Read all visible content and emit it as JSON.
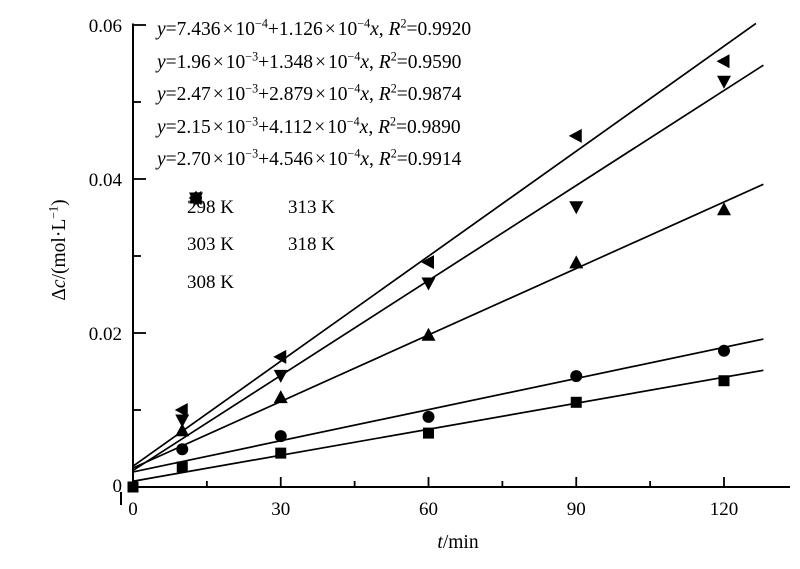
{
  "chart_data": {
    "type": "scatter",
    "title": "",
    "xlabel": {
      "display": "t/min",
      "var": "t",
      "rest": "/min"
    },
    "ylabel": {
      "display": "Δc/(mol·L⁻¹)",
      "sym": "Δ",
      "var": "c",
      "mid": "/(mol·L",
      "exp": "−1",
      "end": ")"
    },
    "x_axis": {
      "range": [
        0,
        133
      ],
      "ticks_major": [
        0,
        30,
        60,
        90,
        120
      ],
      "tick_labels": [
        "0",
        "30",
        "60",
        "90",
        "120"
      ],
      "ticks_minor": [
        15,
        45,
        75,
        105
      ]
    },
    "y_axis": {
      "range": [
        0,
        0.0602
      ],
      "ticks_major": [
        0,
        0.02,
        0.04,
        0.06
      ],
      "tick_labels": [
        "0",
        "0.02",
        "0.04",
        "0.06"
      ],
      "ticks_minor": [
        0.01,
        0.03,
        0.05
      ]
    },
    "grid": false,
    "colors": {
      "foreground": "#000000",
      "background": "#ffffff"
    },
    "fit_line_x_end": 128,
    "series": [
      {
        "name": "298 K",
        "key": "298k",
        "marker": "square",
        "points": [
          [
            0,
            0
          ],
          [
            10,
            0.0026
          ],
          [
            30,
            0.0044
          ],
          [
            60,
            0.007
          ],
          [
            90,
            0.011
          ],
          [
            120,
            0.0138
          ]
        ],
        "fit": {
          "intercept": 0.0007436,
          "slope": 0.0001126
        },
        "equation": {
          "c0": "7.436",
          "e0": "−4",
          "c1": "1.126",
          "e1": "−4",
          "r2": "0.9920",
          "display": "y=7.436×10⁻⁴+1.126×10⁻⁴x, R²=0.9920"
        }
      },
      {
        "name": "303 K",
        "key": "303k",
        "marker": "circle",
        "points": [
          [
            10,
            0.0049
          ],
          [
            30,
            0.0066
          ],
          [
            60,
            0.0091
          ],
          [
            90,
            0.0144
          ],
          [
            120,
            0.0177
          ]
        ],
        "fit": {
          "intercept": 0.00196,
          "slope": 0.0001348
        },
        "equation": {
          "c0": "1.96",
          "e0": "−3",
          "c1": "1.348",
          "e1": "−4",
          "r2": "0.9590",
          "display": "y=1.96×10⁻³+1.348×10⁻⁴x, R²=0.9590"
        }
      },
      {
        "name": "308 K",
        "key": "308k",
        "marker": "triangle-up",
        "points": [
          [
            10,
            0.0073
          ],
          [
            30,
            0.0116
          ],
          [
            60,
            0.0197
          ],
          [
            90,
            0.0291
          ],
          [
            120,
            0.036
          ]
        ],
        "fit": {
          "intercept": 0.00247,
          "slope": 0.0002879
        },
        "equation": {
          "c0": "2.47",
          "e0": "−3",
          "c1": "2.879",
          "e1": "−4",
          "r2": "0.9874",
          "display": "y=2.47×10⁻³+2.879×10⁻⁴x, R²=0.9874"
        }
      },
      {
        "name": "313 K",
        "key": "313k",
        "marker": "triangle-down",
        "points": [
          [
            10,
            0.0087
          ],
          [
            30,
            0.0145
          ],
          [
            60,
            0.0265
          ],
          [
            90,
            0.0364
          ],
          [
            120,
            0.0527
          ]
        ],
        "fit": {
          "intercept": 0.00215,
          "slope": 0.0004112
        },
        "equation": {
          "c0": "2.15",
          "e0": "−3",
          "c1": "4.112",
          "e1": "−4",
          "r2": "0.9890",
          "display": "y=2.15×10⁻³+4.112×10⁻⁴x, R²=0.9890"
        }
      },
      {
        "name": "318 K",
        "key": "318k",
        "marker": "triangle-left",
        "points": [
          [
            10,
            0.01
          ],
          [
            30,
            0.0169
          ],
          [
            60,
            0.0292
          ],
          [
            90,
            0.0456
          ],
          [
            120,
            0.0553
          ]
        ],
        "fit": {
          "intercept": 0.0027,
          "slope": 0.0004546
        },
        "equation": {
          "c0": "2.70",
          "e0": "−3",
          "c1": "4.546",
          "e1": "−4",
          "r2": "0.9914",
          "display": "y=2.70×10⁻³+4.546×10⁻⁴x, R²=0.9914"
        }
      }
    ],
    "legend": {
      "location": "inside-upper-left",
      "columns_by_series_index": [
        [
          0,
          1,
          2
        ],
        [
          3,
          4
        ]
      ]
    }
  }
}
